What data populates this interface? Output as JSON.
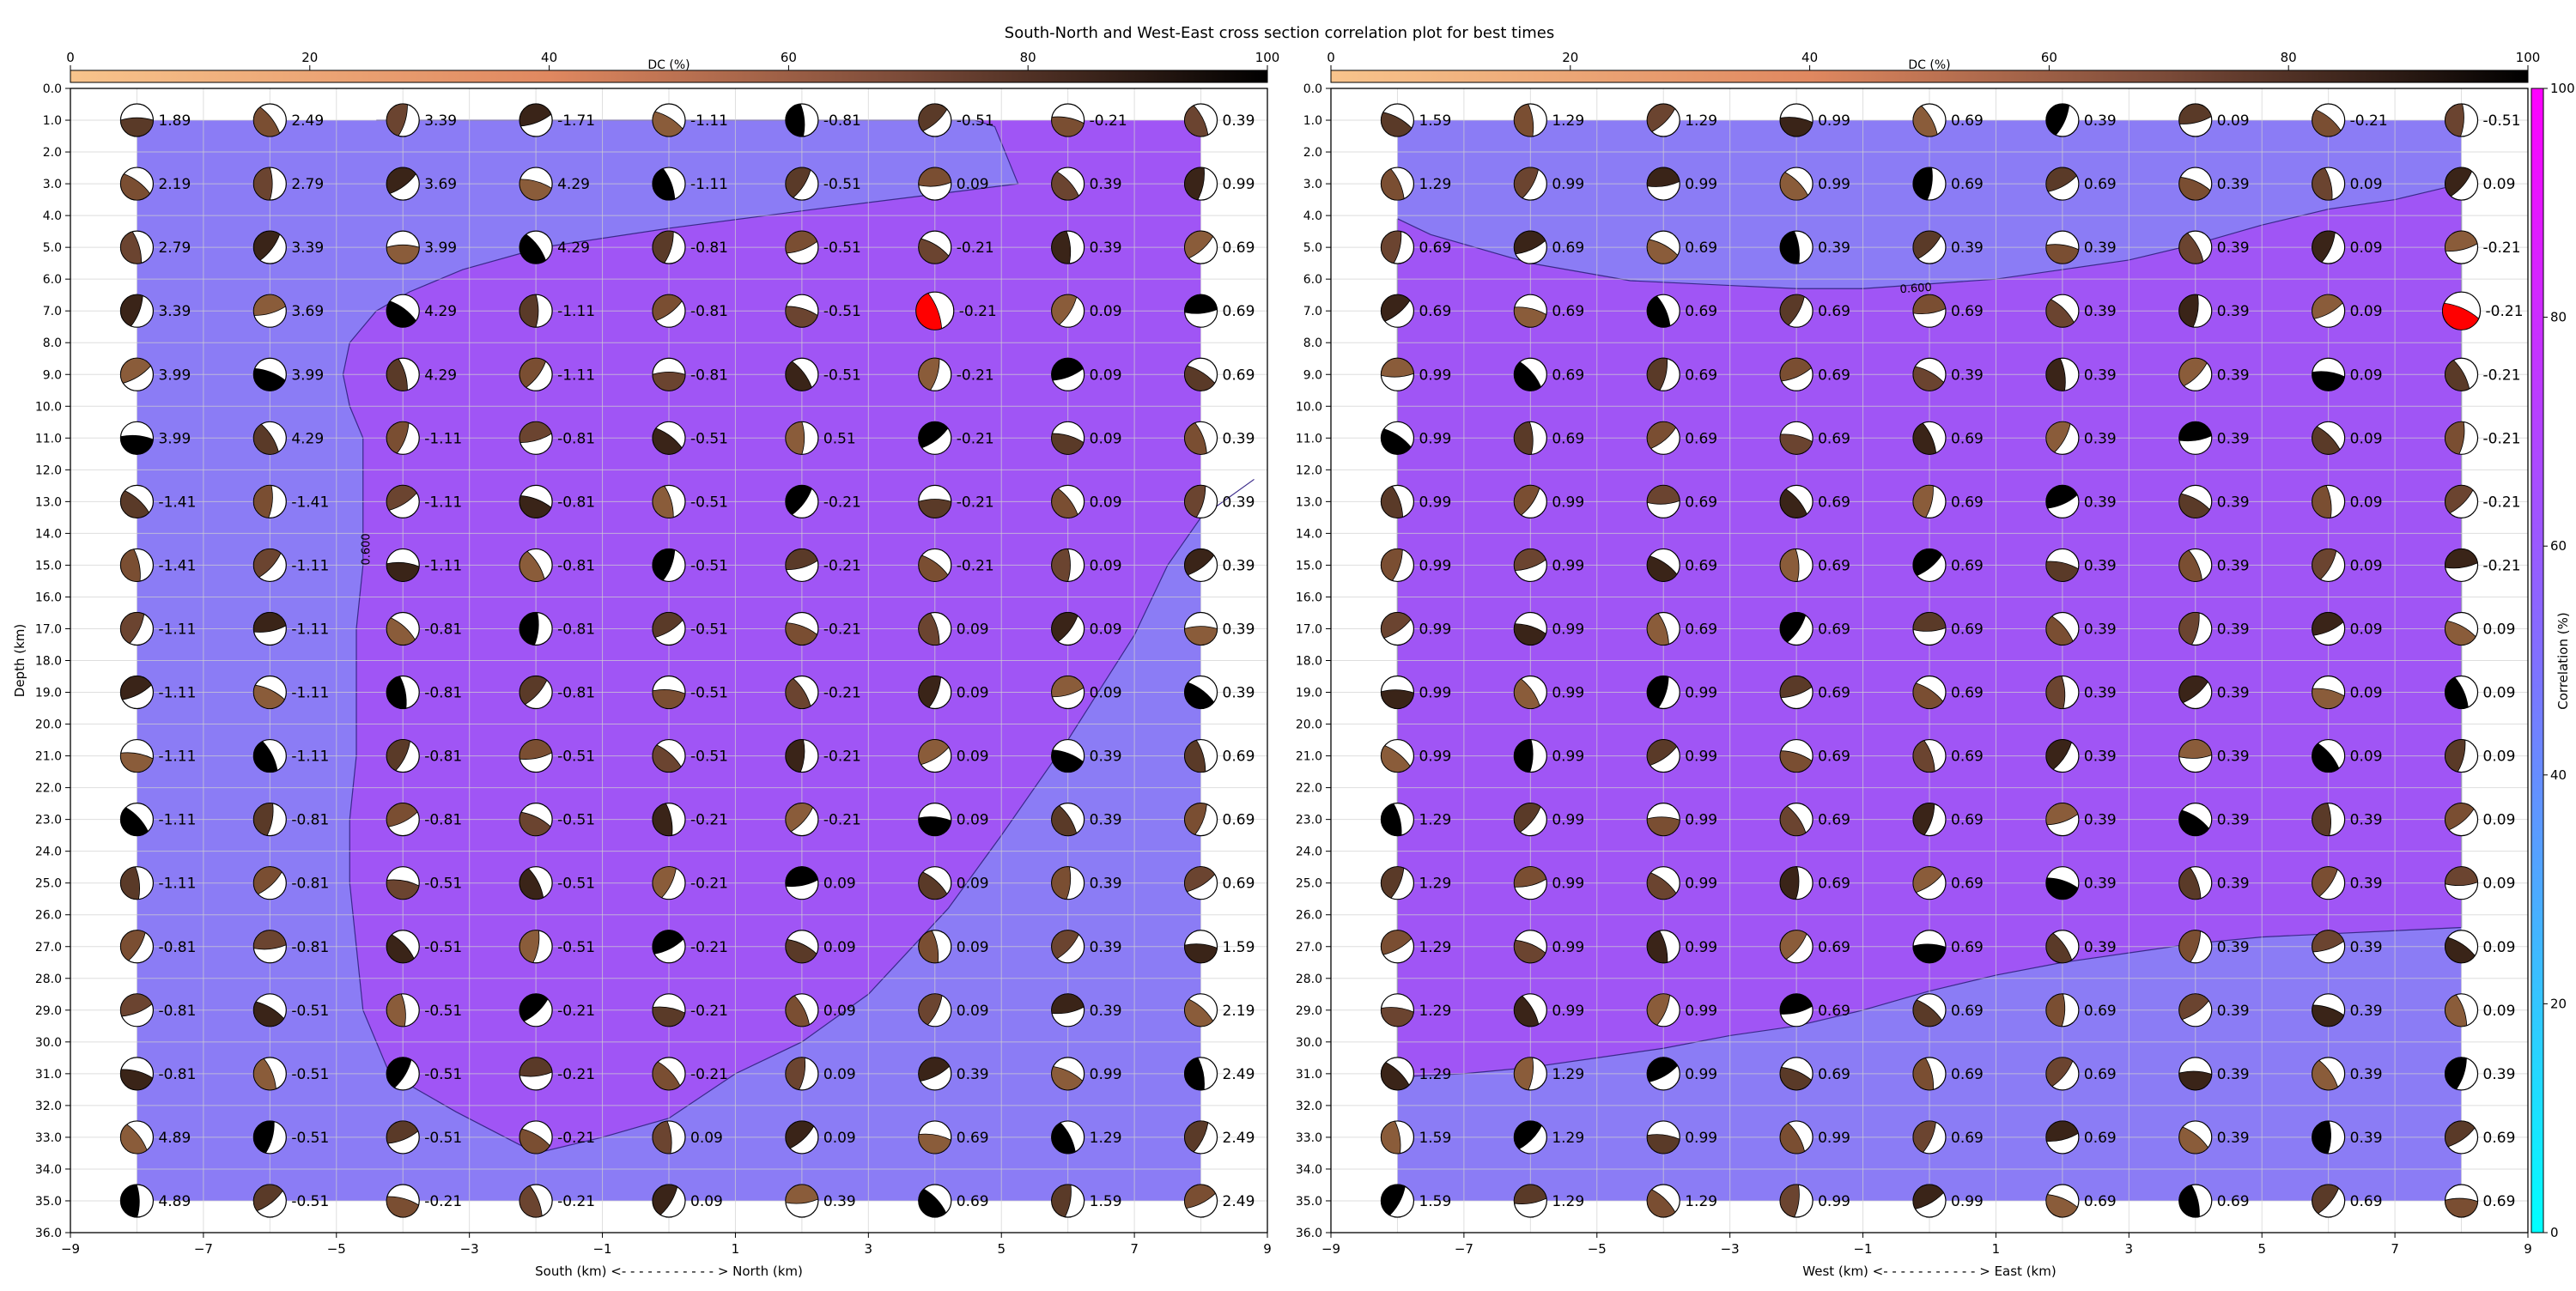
{
  "title": "South-North and West-East cross section correlation plot for best times",
  "panels": [
    {
      "xlabel": "South (km) <- - - - - - - - - - - > North (km)",
      "ylabel": "Depth (km)",
      "xlim": [
        -9,
        9
      ],
      "ylim": [
        36,
        0
      ],
      "x_tick_labels": [
        "−9",
        "−7",
        "−5",
        "−3",
        "−1",
        "1",
        "3",
        "5",
        "7",
        "9"
      ],
      "contour_label": "0.600",
      "dc_colorbar_label": "DC (%)",
      "dc_colorbar_ticks": [
        "0",
        "20",
        "40",
        "60",
        "80",
        "100"
      ]
    },
    {
      "xlabel": "West (km) <- - - - - - - - - - - > East (km)",
      "ylabel": "",
      "xlim": [
        -9,
        9
      ],
      "ylim": [
        36,
        0
      ],
      "x_tick_labels": [
        "−9",
        "−7",
        "−5",
        "−3",
        "−1",
        "1",
        "3",
        "5",
        "7",
        "9"
      ],
      "contour_label": "0.600",
      "dc_colorbar_label": "DC (%)",
      "dc_colorbar_ticks": [
        "0",
        "20",
        "40",
        "60",
        "80",
        "100"
      ]
    }
  ],
  "y_tick_labels": [
    "0.0",
    "1.0",
    "2.0",
    "3.0",
    "4.0",
    "5.0",
    "6.0",
    "7.0",
    "8.0",
    "9.0",
    "10.0",
    "11.0",
    "12.0",
    "13.0",
    "14.0",
    "15.0",
    "16.0",
    "17.0",
    "18.0",
    "19.0",
    "20.0",
    "21.0",
    "22.0",
    "23.0",
    "24.0",
    "25.0",
    "26.0",
    "27.0",
    "28.0",
    "29.0",
    "30.0",
    "31.0",
    "32.0",
    "33.0",
    "34.0",
    "35.0",
    "36.0"
  ],
  "correlation_colorbar": {
    "label": "Correlation (%)",
    "ticks": [
      "0",
      "20",
      "40",
      "60",
      "80",
      "100"
    ]
  },
  "colors": {
    "background_fill": "#8b7cf5",
    "high_region_fill": "#a055f5",
    "best_solution": "#ff0000",
    "dc_low": "#f8c48c",
    "dc_high": "#000000"
  },
  "chart_data": [
    {
      "type": "heatmap",
      "section": "South-North",
      "x": [
        -8,
        -6,
        -4,
        -2,
        0,
        2,
        4,
        6,
        8
      ],
      "depth": [
        1,
        3,
        5,
        7,
        9,
        11,
        13,
        15,
        17,
        19,
        21,
        23,
        25,
        27,
        29,
        31,
        33,
        35
      ],
      "centroid_time_shift": [
        [
          "1.89",
          "2.49",
          "3.39",
          "-1.71",
          "-1.11",
          "-0.81",
          "-0.51",
          "-0.21",
          "0.39"
        ],
        [
          "2.19",
          "2.79",
          "3.69",
          "4.29",
          "-1.11",
          "-0.51",
          "0.09",
          "0.39",
          "0.99"
        ],
        [
          "2.79",
          "3.39",
          "3.99",
          "4.29",
          "-0.81",
          "-0.51",
          "-0.21",
          "0.39",
          "0.69"
        ],
        [
          "3.39",
          "3.69",
          "4.29",
          "-1.11",
          "-0.81",
          "-0.51",
          "-0.21",
          "0.09",
          "0.69"
        ],
        [
          "3.99",
          "3.99",
          "4.29",
          "-1.11",
          "-0.81",
          "-0.51",
          "-0.21",
          "0.09",
          "0.69"
        ],
        [
          "3.99",
          "4.29",
          "-1.11",
          "-0.81",
          "-0.51",
          "0.51",
          "-0.21",
          "0.09",
          "0.39"
        ],
        [
          "-1.41",
          "-1.41",
          "-1.11",
          "-0.81",
          "-0.51",
          "-0.21",
          "-0.21",
          "0.09",
          "0.39"
        ],
        [
          "-1.41",
          "-1.11",
          "-1.11",
          "-0.81",
          "-0.51",
          "-0.21",
          "-0.21",
          "0.09",
          "0.39"
        ],
        [
          "-1.11",
          "-1.11",
          "-0.81",
          "-0.81",
          "-0.51",
          "-0.21",
          "0.09",
          "0.09",
          "0.39"
        ],
        [
          "-1.11",
          "-1.11",
          "-0.81",
          "-0.81",
          "-0.51",
          "-0.21",
          "0.09",
          "0.09",
          "0.39"
        ],
        [
          "-1.11",
          "-1.11",
          "-0.81",
          "-0.51",
          "-0.51",
          "-0.21",
          "0.09",
          "0.39",
          "0.69"
        ],
        [
          "-1.11",
          "-0.81",
          "-0.81",
          "-0.51",
          "-0.21",
          "-0.21",
          "0.09",
          "0.39",
          "0.69"
        ],
        [
          "-1.11",
          "-0.81",
          "-0.51",
          "-0.51",
          "-0.21",
          "0.09",
          "0.09",
          "0.39",
          "0.69"
        ],
        [
          "-0.81",
          "-0.81",
          "-0.51",
          "-0.51",
          "-0.21",
          "0.09",
          "0.09",
          "0.39",
          "1.59"
        ],
        [
          "-0.81",
          "-0.51",
          "-0.51",
          "-0.21",
          "-0.21",
          "0.09",
          "0.09",
          "0.39",
          "2.19"
        ],
        [
          "-0.81",
          "-0.51",
          "-0.51",
          "-0.21",
          "-0.21",
          "0.09",
          "0.39",
          "0.99",
          "2.49"
        ],
        [
          "4.89",
          "-0.51",
          "-0.51",
          "-0.21",
          "0.09",
          "0.09",
          "0.69",
          "1.29",
          "2.49"
        ],
        [
          "4.89",
          "-0.51",
          "-0.21",
          "-0.21",
          "0.09",
          "0.39",
          "0.69",
          "1.59",
          "2.49"
        ]
      ],
      "correlation_0_6_contour": {
        "level": 0.6
      },
      "best_solution": {
        "x": 4,
        "depth": 7
      }
    },
    {
      "type": "heatmap",
      "section": "West-East",
      "x": [
        -8,
        -6,
        -4,
        -2,
        0,
        2,
        4,
        6,
        8
      ],
      "depth": [
        1,
        3,
        5,
        7,
        9,
        11,
        13,
        15,
        17,
        19,
        21,
        23,
        25,
        27,
        29,
        31,
        33,
        35
      ],
      "centroid_time_shift": [
        [
          "1.59",
          "1.29",
          "1.29",
          "0.99",
          "0.69",
          "0.39",
          "0.09",
          "-0.21",
          "-0.51"
        ],
        [
          "1.29",
          "0.99",
          "0.99",
          "0.99",
          "0.69",
          "0.69",
          "0.39",
          "0.09",
          "0.09"
        ],
        [
          "0.69",
          "0.69",
          "0.69",
          "0.39",
          "0.39",
          "0.39",
          "0.39",
          "0.09",
          "-0.21"
        ],
        [
          "0.69",
          "0.69",
          "0.69",
          "0.69",
          "0.69",
          "0.39",
          "0.39",
          "0.09",
          "-0.21"
        ],
        [
          "0.99",
          "0.69",
          "0.69",
          "0.69",
          "0.39",
          "0.39",
          "0.39",
          "0.09",
          "-0.21"
        ],
        [
          "0.99",
          "0.69",
          "0.69",
          "0.69",
          "0.69",
          "0.39",
          "0.39",
          "0.09",
          "-0.21"
        ],
        [
          "0.99",
          "0.99",
          "0.69",
          "0.69",
          "0.69",
          "0.39",
          "0.39",
          "0.09",
          "-0.21"
        ],
        [
          "0.99",
          "0.99",
          "0.69",
          "0.69",
          "0.69",
          "0.39",
          "0.39",
          "0.09",
          "-0.21"
        ],
        [
          "0.99",
          "0.99",
          "0.69",
          "0.69",
          "0.69",
          "0.39",
          "0.39",
          "0.09",
          "0.09"
        ],
        [
          "0.99",
          "0.99",
          "0.99",
          "0.69",
          "0.69",
          "0.39",
          "0.39",
          "0.09",
          "0.09"
        ],
        [
          "0.99",
          "0.99",
          "0.99",
          "0.69",
          "0.69",
          "0.39",
          "0.39",
          "0.09",
          "0.09"
        ],
        [
          "1.29",
          "0.99",
          "0.99",
          "0.69",
          "0.69",
          "0.39",
          "0.39",
          "0.39",
          "0.09"
        ],
        [
          "1.29",
          "0.99",
          "0.99",
          "0.69",
          "0.69",
          "0.39",
          "0.39",
          "0.39",
          "0.09"
        ],
        [
          "1.29",
          "0.99",
          "0.99",
          "0.69",
          "0.69",
          "0.39",
          "0.39",
          "0.39",
          "0.09"
        ],
        [
          "1.29",
          "0.99",
          "0.99",
          "0.69",
          "0.69",
          "0.69",
          "0.39",
          "0.39",
          "0.09"
        ],
        [
          "1.29",
          "1.29",
          "0.99",
          "0.69",
          "0.69",
          "0.69",
          "0.39",
          "0.39",
          "0.39"
        ],
        [
          "1.59",
          "1.29",
          "0.99",
          "0.99",
          "0.69",
          "0.69",
          "0.39",
          "0.39",
          "0.69"
        ],
        [
          "1.59",
          "1.29",
          "1.29",
          "0.99",
          "0.99",
          "0.69",
          "0.69",
          "0.69",
          "0.69"
        ]
      ],
      "correlation_0_6_contour": {
        "level": 0.6
      },
      "best_solution": {
        "x": 8,
        "depth": 7
      }
    }
  ]
}
